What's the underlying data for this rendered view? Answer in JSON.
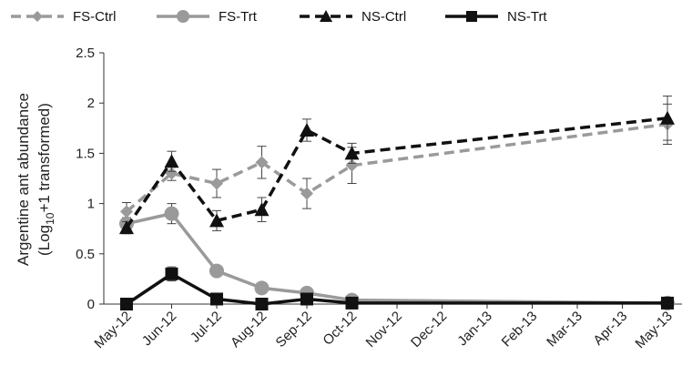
{
  "chart_data": {
    "type": "line",
    "title": "",
    "xlabel": "",
    "ylabel_line1": "Argentine ant abundance",
    "ylabel_line2_pre": "(Log",
    "ylabel_line2_sub": "10",
    "ylabel_line2_post": "+1 transformed)",
    "ylim": [
      0,
      2.5
    ],
    "yticks": [
      "0",
      "0.5",
      "1",
      "1.5",
      "2",
      "2.5"
    ],
    "categories": [
      "May-12",
      "Jun-12",
      "Jul-12",
      "Aug-12",
      "Sep-12",
      "Oct-12",
      "Nov-12",
      "Dec-12",
      "Jan-13",
      "Feb-13",
      "Mar-13",
      "Apr-13",
      "May-13"
    ],
    "grid": false,
    "legend_position": "top",
    "series": [
      {
        "name": "FS-Ctrl",
        "color": "#9a9a9a",
        "dashed": true,
        "marker": "diamond",
        "points": [
          {
            "x": 0,
            "y": 0.92,
            "err": 0.09
          },
          {
            "x": 1,
            "y": 1.3,
            "err": 0.07
          },
          {
            "x": 2,
            "y": 1.2,
            "err": 0.14
          },
          {
            "x": 3,
            "y": 1.41,
            "err": 0.16
          },
          {
            "x": 4,
            "y": 1.1,
            "err": 0.15
          },
          {
            "x": 5,
            "y": 1.38,
            "err": 0.18
          },
          {
            "x": 12,
            "y": 1.79,
            "err": 0.2
          }
        ]
      },
      {
        "name": "FS-Trt",
        "color": "#9a9a9a",
        "dashed": false,
        "marker": "circle",
        "points": [
          {
            "x": 0,
            "y": 0.8,
            "err": 0.06
          },
          {
            "x": 1,
            "y": 0.9,
            "err": 0.1
          },
          {
            "x": 2,
            "y": 0.33,
            "err": 0.03
          },
          {
            "x": 3,
            "y": 0.16,
            "err": 0.03
          },
          {
            "x": 4,
            "y": 0.11,
            "err": 0.02
          },
          {
            "x": 5,
            "y": 0.04,
            "err": 0.01
          },
          {
            "x": 12,
            "y": 0.01,
            "err": 0.01
          }
        ]
      },
      {
        "name": "NS-Ctrl",
        "color": "#111111",
        "dashed": true,
        "marker": "triangle",
        "points": [
          {
            "x": 0,
            "y": 0.76,
            "err": 0.06
          },
          {
            "x": 1,
            "y": 1.42,
            "err": 0.1
          },
          {
            "x": 2,
            "y": 0.83,
            "err": 0.1
          },
          {
            "x": 3,
            "y": 0.94,
            "err": 0.12
          },
          {
            "x": 4,
            "y": 1.73,
            "err": 0.11
          },
          {
            "x": 5,
            "y": 1.5,
            "err": 0.1
          },
          {
            "x": 12,
            "y": 1.85,
            "err": 0.22
          }
        ]
      },
      {
        "name": "NS-Trt",
        "color": "#111111",
        "dashed": false,
        "marker": "square",
        "points": [
          {
            "x": 0,
            "y": 0.0,
            "err": 0.0
          },
          {
            "x": 1,
            "y": 0.3,
            "err": 0.07
          },
          {
            "x": 2,
            "y": 0.05,
            "err": 0.03
          },
          {
            "x": 3,
            "y": 0.0,
            "err": 0.0
          },
          {
            "x": 4,
            "y": 0.05,
            "err": 0.02
          },
          {
            "x": 5,
            "y": 0.01,
            "err": 0.0
          },
          {
            "x": 12,
            "y": 0.01,
            "err": 0.0
          }
        ]
      }
    ]
  }
}
